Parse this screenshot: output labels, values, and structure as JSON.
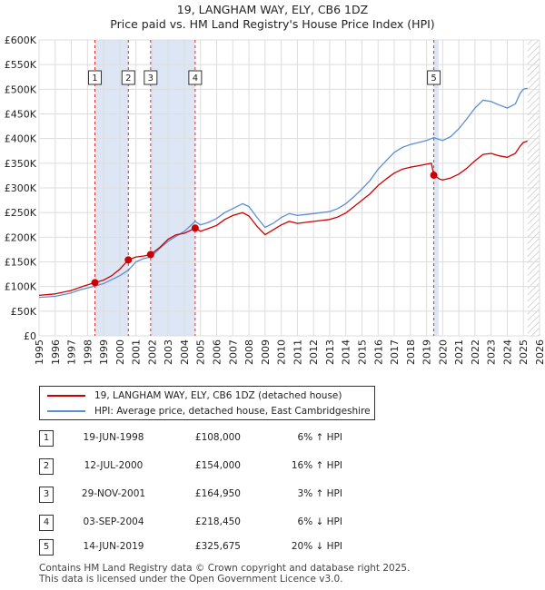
{
  "chart_data": {
    "type": "line",
    "title": "19, LANGHAM WAY, ELY, CB6 1DZ",
    "subtitle": "Price paid vs. HM Land Registry's House Price Index (HPI)",
    "xlim": [
      1995,
      2026
    ],
    "ylim": [
      0,
      600000
    ],
    "x_ticks": [
      "1995",
      "1996",
      "1997",
      "1998",
      "1999",
      "2000",
      "2001",
      "2002",
      "2003",
      "2004",
      "2005",
      "2006",
      "2007",
      "2008",
      "2009",
      "2010",
      "2011",
      "2012",
      "2013",
      "2014",
      "2015",
      "2016",
      "2017",
      "2018",
      "2019",
      "2020",
      "2021",
      "2022",
      "2023",
      "2024",
      "2025",
      "2026"
    ],
    "y_ticks": [
      {
        "v": 0,
        "label": "£0"
      },
      {
        "v": 50000,
        "label": "£50K"
      },
      {
        "v": 100000,
        "label": "£100K"
      },
      {
        "v": 150000,
        "label": "£150K"
      },
      {
        "v": 200000,
        "label": "£200K"
      },
      {
        "v": 250000,
        "label": "£250K"
      },
      {
        "v": 300000,
        "label": "£300K"
      },
      {
        "v": 350000,
        "label": "£350K"
      },
      {
        "v": 400000,
        "label": "£400K"
      },
      {
        "v": 450000,
        "label": "£450K"
      },
      {
        "v": 500000,
        "label": "£500K"
      },
      {
        "v": 550000,
        "label": "£550K"
      },
      {
        "v": 600000,
        "label": "£600K"
      }
    ],
    "grid": true,
    "series": [
      {
        "name": "19, LANGHAM WAY, ELY, CB6 1DZ (detached house)",
        "color": "#cc0000",
        "points": [
          [
            1995.0,
            82000
          ],
          [
            1996.0,
            85000
          ],
          [
            1997.0,
            92000
          ],
          [
            1997.5,
            98000
          ],
          [
            1998.46,
            108000
          ],
          [
            1999.0,
            113000
          ],
          [
            1999.5,
            122000
          ],
          [
            2000.0,
            135000
          ],
          [
            2000.53,
            154000
          ],
          [
            2001.0,
            160000
          ],
          [
            2001.5,
            162000
          ],
          [
            2001.91,
            164950
          ],
          [
            2002.5,
            180000
          ],
          [
            2003.0,
            196000
          ],
          [
            2003.5,
            205000
          ],
          [
            2004.0,
            208000
          ],
          [
            2004.67,
            218450
          ],
          [
            2005.0,
            212000
          ],
          [
            2005.5,
            218000
          ],
          [
            2006.0,
            224000
          ],
          [
            2006.5,
            236000
          ],
          [
            2007.0,
            244000
          ],
          [
            2007.6,
            250000
          ],
          [
            2008.0,
            243000
          ],
          [
            2008.5,
            222000
          ],
          [
            2009.0,
            205000
          ],
          [
            2009.5,
            215000
          ],
          [
            2010.0,
            225000
          ],
          [
            2010.5,
            232000
          ],
          [
            2011.0,
            228000
          ],
          [
            2011.5,
            230000
          ],
          [
            2012.0,
            232000
          ],
          [
            2012.5,
            234000
          ],
          [
            2013.0,
            236000
          ],
          [
            2013.5,
            241000
          ],
          [
            2014.0,
            249000
          ],
          [
            2014.5,
            262000
          ],
          [
            2015.0,
            275000
          ],
          [
            2015.5,
            288000
          ],
          [
            2016.0,
            305000
          ],
          [
            2016.5,
            318000
          ],
          [
            2017.0,
            330000
          ],
          [
            2017.5,
            338000
          ],
          [
            2018.0,
            342000
          ],
          [
            2018.5,
            345000
          ],
          [
            2019.0,
            348000
          ],
          [
            2019.3,
            350000
          ],
          [
            2019.45,
            325675
          ],
          [
            2019.8,
            318000
          ],
          [
            2020.0,
            316000
          ],
          [
            2020.5,
            320000
          ],
          [
            2021.0,
            328000
          ],
          [
            2021.5,
            340000
          ],
          [
            2022.0,
            355000
          ],
          [
            2022.5,
            368000
          ],
          [
            2023.0,
            370000
          ],
          [
            2023.5,
            365000
          ],
          [
            2024.0,
            362000
          ],
          [
            2024.5,
            370000
          ],
          [
            2024.8,
            385000
          ],
          [
            2025.0,
            392000
          ],
          [
            2025.25,
            395000
          ]
        ]
      },
      {
        "name": "HPI: Average price, detached house, East Cambridgeshire",
        "color": "#5b8fd1",
        "points": [
          [
            1995.0,
            78000
          ],
          [
            1996.0,
            80000
          ],
          [
            1997.0,
            87000
          ],
          [
            1997.5,
            93000
          ],
          [
            1998.46,
            101000
          ],
          [
            1999.0,
            106000
          ],
          [
            1999.5,
            114000
          ],
          [
            2000.0,
            122000
          ],
          [
            2000.53,
            133000
          ],
          [
            2001.0,
            150000
          ],
          [
            2001.5,
            157000
          ],
          [
            2001.91,
            160000
          ],
          [
            2002.5,
            178000
          ],
          [
            2003.0,
            192000
          ],
          [
            2003.5,
            202000
          ],
          [
            2004.0,
            212000
          ],
          [
            2004.67,
            232000
          ],
          [
            2005.0,
            225000
          ],
          [
            2005.5,
            230000
          ],
          [
            2006.0,
            238000
          ],
          [
            2006.5,
            250000
          ],
          [
            2007.0,
            258000
          ],
          [
            2007.6,
            268000
          ],
          [
            2008.0,
            262000
          ],
          [
            2008.5,
            240000
          ],
          [
            2009.0,
            220000
          ],
          [
            2009.5,
            228000
          ],
          [
            2010.0,
            240000
          ],
          [
            2010.5,
            248000
          ],
          [
            2011.0,
            244000
          ],
          [
            2011.5,
            246000
          ],
          [
            2012.0,
            248000
          ],
          [
            2012.5,
            250000
          ],
          [
            2013.0,
            252000
          ],
          [
            2013.5,
            258000
          ],
          [
            2014.0,
            268000
          ],
          [
            2014.5,
            282000
          ],
          [
            2015.0,
            298000
          ],
          [
            2015.5,
            315000
          ],
          [
            2016.0,
            338000
          ],
          [
            2016.5,
            355000
          ],
          [
            2017.0,
            372000
          ],
          [
            2017.5,
            382000
          ],
          [
            2018.0,
            388000
          ],
          [
            2018.5,
            392000
          ],
          [
            2019.0,
            396000
          ],
          [
            2019.45,
            402000
          ],
          [
            2019.8,
            398000
          ],
          [
            2020.0,
            396000
          ],
          [
            2020.5,
            404000
          ],
          [
            2021.0,
            420000
          ],
          [
            2021.5,
            440000
          ],
          [
            2022.0,
            462000
          ],
          [
            2022.5,
            478000
          ],
          [
            2023.0,
            475000
          ],
          [
            2023.5,
            468000
          ],
          [
            2024.0,
            462000
          ],
          [
            2024.5,
            470000
          ],
          [
            2024.8,
            492000
          ],
          [
            2025.0,
            500000
          ],
          [
            2025.25,
            502000
          ]
        ]
      }
    ],
    "transactions": [
      {
        "id": "1",
        "x": 1998.46,
        "price": 108000,
        "date": "19-JUN-1998",
        "price_label": "£108,000",
        "hpi_label": "6% ↑ HPI"
      },
      {
        "id": "2",
        "x": 2000.53,
        "price": 154000,
        "date": "12-JUL-2000",
        "price_label": "£154,000",
        "hpi_label": "16% ↑ HPI"
      },
      {
        "id": "3",
        "x": 2001.91,
        "price": 164950,
        "date": "29-NOV-2001",
        "price_label": "£164,950",
        "hpi_label": "3% ↑ HPI"
      },
      {
        "id": "4",
        "x": 2004.67,
        "price": 218450,
        "date": "03-SEP-2004",
        "price_label": "£218,450",
        "hpi_label": "6% ↓ HPI"
      },
      {
        "id": "5",
        "x": 2019.45,
        "price": 325675,
        "date": "14-JUN-2019",
        "price_label": "£325,675",
        "hpi_label": "20% ↓ HPI"
      }
    ],
    "shaded_ranges": [
      [
        1998.46,
        2000.53
      ],
      [
        2001.91,
        2004.67
      ],
      [
        2019.45,
        2019.75
      ],
      [
        2025.25,
        2026
      ]
    ],
    "marker_color": "#cc0000",
    "shade_color": "#dde6f4",
    "hatch_color": "#c8c8c8"
  },
  "legend": {
    "property_label": "19, LANGHAM WAY, ELY, CB6 1DZ (detached house)",
    "hpi_label": "HPI: Average price, detached house, East Cambridgeshire"
  },
  "footer": {
    "line1": "Contains HM Land Registry data © Crown copyright and database right 2025.",
    "line2": "This data is licensed under the Open Government Licence v3.0."
  }
}
